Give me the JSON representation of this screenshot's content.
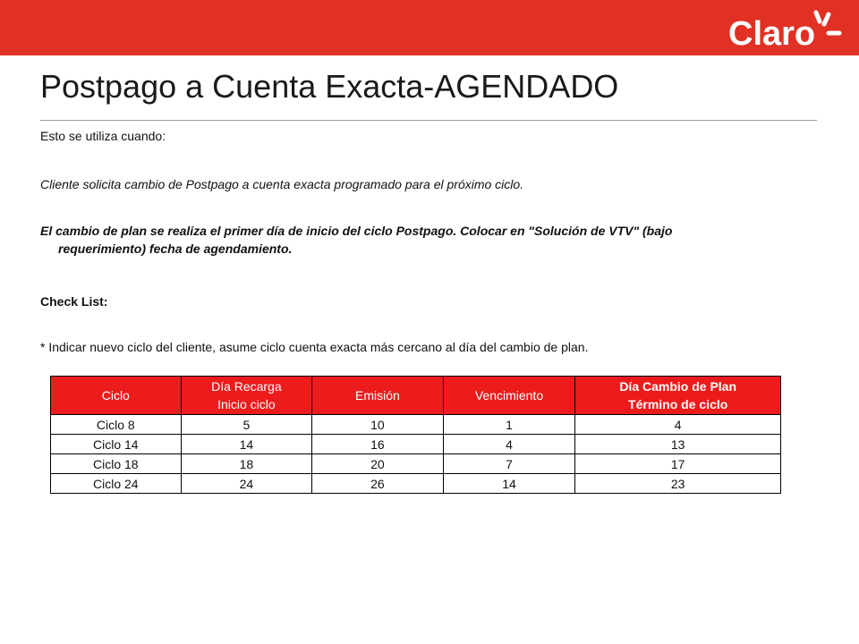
{
  "header": {
    "bar_color": "#e03124",
    "logo_text": "Claro"
  },
  "title": "Postpago a Cuenta Exacta-AGENDADO",
  "body": {
    "intro": "Esto se utiliza cuando:",
    "case": "Cliente solicita cambio de Postpago a cuenta exacta programado para el próximo ciclo.",
    "instruction_line1": "El cambio de plan se realiza el primer día de inicio del ciclo Postpago. Colocar en \"Solución de VTV\" (bajo",
    "instruction_line2": "requerimiento) fecha de agendamiento.",
    "checklist_label": "Check List:",
    "checklist_item": "* Indicar nuevo ciclo del cliente, asume ciclo cuenta exacta más cercano al día del cambio de plan."
  },
  "table": {
    "header_color": "#ec1c1c",
    "headers": [
      [
        "Ciclo"
      ],
      [
        "Día Recarga",
        "Inicio ciclo"
      ],
      [
        "Emisión"
      ],
      [
        "Vencimiento"
      ],
      [
        "Día Cambio de Plan",
        "Término de ciclo"
      ]
    ],
    "rows": [
      [
        "Ciclo 8",
        "5",
        "10",
        "1",
        "4"
      ],
      [
        "Ciclo 14",
        "14",
        "16",
        "4",
        "13"
      ],
      [
        "Ciclo 18",
        "18",
        "20",
        "7",
        "17"
      ],
      [
        "Ciclo 24",
        "24",
        "26",
        "14",
        "23"
      ]
    ]
  }
}
